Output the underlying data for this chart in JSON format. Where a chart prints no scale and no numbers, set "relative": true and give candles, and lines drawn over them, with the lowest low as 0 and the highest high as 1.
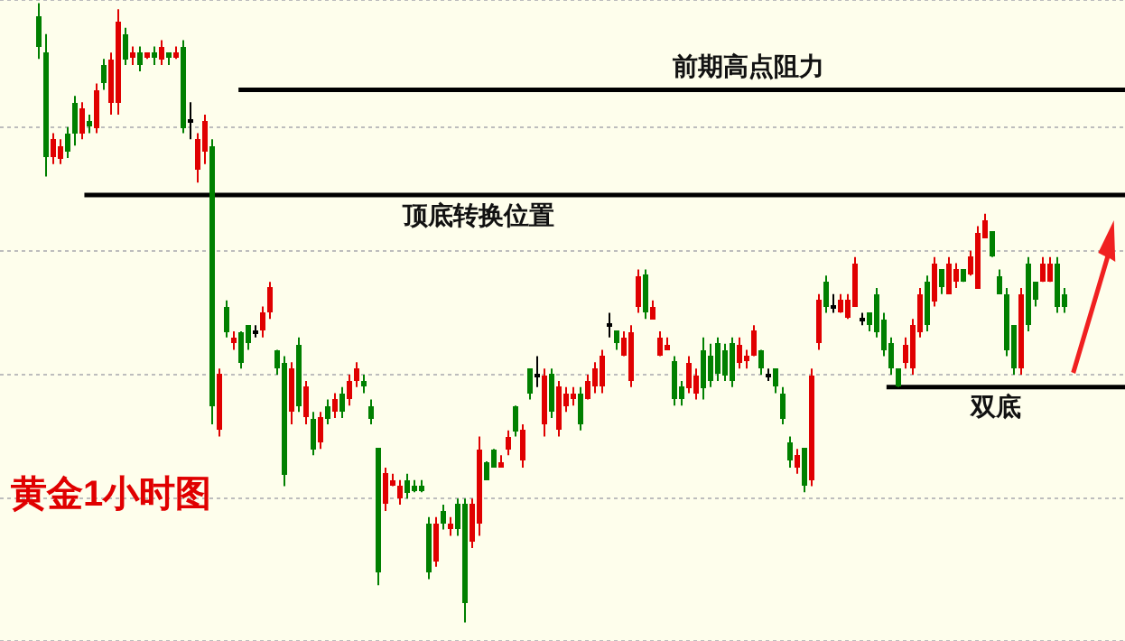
{
  "chart_data": {
    "type": "candlestick",
    "title": "黄金1小时图",
    "relative": true,
    "grid": "y",
    "tick_labels": false,
    "categories": [
      null,
      null,
      null,
      null,
      null,
      null,
      null,
      null,
      null,
      null,
      null,
      null,
      null,
      null,
      null,
      null,
      null,
      null,
      null,
      null,
      null,
      null,
      null,
      null,
      null,
      null,
      null,
      null,
      null,
      null,
      null,
      null,
      null,
      null,
      null,
      null,
      null,
      null,
      null,
      null,
      null,
      null,
      null,
      null,
      null,
      null,
      null,
      null,
      null,
      null,
      null,
      null,
      null,
      null,
      null,
      null,
      null,
      null,
      null,
      null,
      null,
      null,
      null,
      null,
      null,
      null,
      null,
      null,
      null,
      null,
      null,
      null,
      null,
      null,
      null,
      null,
      null,
      null,
      null,
      null,
      null,
      null,
      null,
      null,
      null,
      null,
      null,
      null,
      null,
      null,
      null,
      null,
      null,
      null,
      null,
      null,
      null,
      null,
      null,
      null,
      null,
      null,
      null,
      null,
      null,
      null,
      null,
      null,
      null,
      null,
      null,
      null,
      null,
      null,
      null,
      null,
      null,
      null,
      null,
      null,
      null,
      null,
      null,
      null,
      null,
      null,
      null,
      null,
      null,
      null,
      null,
      null,
      null,
      null,
      null,
      null,
      null,
      null,
      null,
      null,
      null,
      null,
      null
    ],
    "ohlc": [
      [
        0.98,
        1,
        0.91,
        0.93
      ],
      [
        0.92,
        0.95,
        0.72,
        0.75
      ],
      [
        0.75,
        0.79,
        0.74,
        0.78
      ],
      [
        0.75,
        0.78,
        0.74,
        0.77
      ],
      [
        0.79,
        0.8,
        0.75,
        0.76
      ],
      [
        0.84,
        0.85,
        0.77,
        0.79
      ],
      [
        0.79,
        0.84,
        0.78,
        0.83
      ],
      [
        0.81,
        0.82,
        0.79,
        0.8
      ],
      [
        0.8,
        0.87,
        0.79,
        0.86
      ],
      [
        0.9,
        0.91,
        0.86,
        0.87
      ],
      [
        0.84,
        0.92,
        0.82,
        0.91
      ],
      [
        0.84,
        0.99,
        0.82,
        0.97
      ],
      [
        0.95,
        0.96,
        0.9,
        0.91
      ],
      [
        0.91,
        0.93,
        0.9,
        0.92
      ],
      [
        0.92,
        0.93,
        0.89,
        0.9
      ],
      [
        0.91,
        0.92,
        0.91,
        0.92
      ],
      [
        0.92,
        0.93,
        0.9,
        0.91
      ],
      [
        0.91,
        0.94,
        0.9,
        0.93
      ],
      [
        0.92,
        0.92,
        0.9,
        0.91
      ],
      [
        0.91,
        0.93,
        0.91,
        0.92
      ],
      [
        0.93,
        0.94,
        0.79,
        0.8
      ],
      [
        0.81,
        0.84,
        0.78,
        0.81
      ],
      [
        0.73,
        0.79,
        0.71,
        0.78
      ],
      [
        0.76,
        0.82,
        0.74,
        0.81
      ],
      [
        0.77,
        0.78,
        0.32,
        0.35
      ],
      [
        0.31,
        0.41,
        0.3,
        0.4
      ],
      [
        0.51,
        0.52,
        0.46,
        0.47
      ],
      [
        0.45,
        0.47,
        0.44,
        0.46
      ],
      [
        0.47,
        0.47,
        0.41,
        0.42
      ],
      [
        0.48,
        0.48,
        0.44,
        0.45
      ],
      [
        0.47,
        0.48,
        0.46,
        0.47
      ],
      [
        0.47,
        0.51,
        0.46,
        0.5
      ],
      [
        0.5,
        0.55,
        0.49,
        0.54
      ],
      [
        0.44,
        0.44,
        0.4,
        0.41
      ],
      [
        0.42,
        0.43,
        0.22,
        0.24
      ],
      [
        0.34,
        0.42,
        0.32,
        0.41
      ],
      [
        0.45,
        0.46,
        0.34,
        0.35
      ],
      [
        0.33,
        0.39,
        0.32,
        0.38
      ],
      [
        0.33,
        0.34,
        0.27,
        0.28
      ],
      [
        0.29,
        0.34,
        0.28,
        0.33
      ],
      [
        0.35,
        0.36,
        0.32,
        0.33
      ],
      [
        0.34,
        0.37,
        0.33,
        0.36
      ],
      [
        0.37,
        0.38,
        0.33,
        0.34
      ],
      [
        0.36,
        0.4,
        0.35,
        0.39
      ],
      [
        0.39,
        0.42,
        0.38,
        0.41
      ],
      [
        0.39,
        0.4,
        0.37,
        0.38
      ],
      [
        0.35,
        0.36,
        0.32,
        0.33
      ],
      [
        0.28,
        0.28,
        0.06,
        0.08
      ],
      [
        0.19,
        0.25,
        0.18,
        0.24
      ],
      [
        0.22,
        0.24,
        0.22,
        0.23
      ],
      [
        0.2,
        0.23,
        0.19,
        0.22
      ],
      [
        0.23,
        0.24,
        0.2,
        0.21
      ],
      [
        0.22,
        0.23,
        0.21,
        0.21
      ],
      [
        0.22,
        0.23,
        0.21,
        0.21
      ],
      [
        0.16,
        0.17,
        0.07,
        0.08
      ],
      [
        0.1,
        0.17,
        0.09,
        0.16
      ],
      [
        0.18,
        0.19,
        0.15,
        0.16
      ],
      [
        0.15,
        0.17,
        0.14,
        0.16
      ],
      [
        0.19,
        0.2,
        0.14,
        0.15
      ],
      [
        0.19,
        0.2,
        0,
        0.03
      ],
      [
        0.13,
        0.2,
        0.12,
        0.19
      ],
      [
        0.16,
        0.3,
        0.14,
        0.28
      ],
      [
        0.26,
        0.26,
        0.23,
        0.23
      ],
      [
        0.28,
        0.28,
        0.25,
        0.25
      ],
      [
        0.25,
        0.27,
        0.25,
        0.26
      ],
      [
        0.28,
        0.31,
        0.27,
        0.3
      ],
      [
        0.35,
        0.35,
        0.3,
        0.31
      ],
      [
        0.26,
        0.32,
        0.25,
        0.31
      ],
      [
        0.41,
        0.41,
        0.36,
        0.37
      ],
      [
        0.4,
        0.43,
        0.38,
        0.4
      ],
      [
        0.32,
        0.41,
        0.3,
        0.4
      ],
      [
        0.4,
        0.41,
        0.33,
        0.34
      ],
      [
        0.31,
        0.39,
        0.3,
        0.38
      ],
      [
        0.35,
        0.38,
        0.34,
        0.37
      ],
      [
        0.36,
        0.38,
        0.35,
        0.37
      ],
      [
        0.37,
        0.38,
        0.31,
        0.32
      ],
      [
        0.36,
        0.4,
        0.36,
        0.39
      ],
      [
        0.38,
        0.42,
        0.37,
        0.41
      ],
      [
        0.38,
        0.44,
        0.37,
        0.43
      ],
      [
        0.48,
        0.5,
        0.46,
        0.48
      ],
      [
        0.47,
        0.47,
        0.44,
        0.45
      ],
      [
        0.43,
        0.47,
        0.43,
        0.46
      ],
      [
        0.39,
        0.48,
        0.38,
        0.47
      ],
      [
        0.51,
        0.57,
        0.5,
        0.56
      ],
      [
        0.56,
        0.57,
        0.49,
        0.5
      ],
      [
        0.49,
        0.52,
        0.49,
        0.51
      ],
      [
        0.43,
        0.47,
        0.43,
        0.46
      ],
      [
        0.44,
        0.46,
        0.44,
        0.45
      ],
      [
        0.42,
        0.43,
        0.35,
        0.36
      ],
      [
        0.38,
        0.39,
        0.35,
        0.36
      ],
      [
        0.38,
        0.43,
        0.37,
        0.42
      ],
      [
        0.37,
        0.41,
        0.36,
        0.4
      ],
      [
        0.44,
        0.46,
        0.36,
        0.38
      ],
      [
        0.43,
        0.45,
        0.38,
        0.39
      ],
      [
        0.45,
        0.46,
        0.39,
        0.4
      ],
      [
        0.44,
        0.45,
        0.39,
        0.4
      ],
      [
        0.45,
        0.46,
        0.38,
        0.39
      ],
      [
        0.42,
        0.46,
        0.41,
        0.45
      ],
      [
        0.42,
        0.44,
        0.41,
        0.43
      ],
      [
        0.43,
        0.48,
        0.43,
        0.47
      ],
      [
        0.44,
        0.44,
        0.4,
        0.41
      ],
      [
        0.4,
        0.41,
        0.39,
        0.4
      ],
      [
        0.41,
        0.41,
        0.37,
        0.38
      ],
      [
        0.37,
        0.38,
        0.32,
        0.33
      ],
      [
        0.29,
        0.3,
        0.25,
        0.26
      ],
      [
        0.25,
        0.28,
        0.24,
        0.27
      ],
      [
        0.28,
        0.28,
        0.21,
        0.22
      ],
      [
        0.23,
        0.41,
        0.22,
        0.4
      ],
      [
        0.45,
        0.53,
        0.44,
        0.52
      ],
      [
        0.55,
        0.56,
        0.5,
        0.51
      ],
      [
        0.51,
        0.53,
        0.5,
        0.51
      ],
      [
        0.5,
        0.53,
        0.5,
        0.52
      ],
      [
        0.49,
        0.53,
        0.49,
        0.52
      ],
      [
        0.51,
        0.59,
        0.51,
        0.58
      ],
      [
        0.49,
        0.5,
        0.48,
        0.49
      ],
      [
        0.5,
        0.5,
        0.47,
        0.48
      ],
      [
        0.53,
        0.54,
        0.46,
        0.47
      ],
      [
        0.49,
        0.5,
        0.43,
        0.44
      ],
      [
        0.45,
        0.46,
        0.4,
        0.41
      ],
      [
        0.41,
        0.41,
        0.38,
        0.38
      ],
      [
        0.42,
        0.46,
        0.41,
        0.45
      ],
      [
        0.41,
        0.49,
        0.4,
        0.48
      ],
      [
        0.47,
        0.54,
        0.46,
        0.53
      ],
      [
        0.55,
        0.56,
        0.47,
        0.48
      ],
      [
        0.52,
        0.59,
        0.51,
        0.58
      ],
      [
        0.57,
        0.57,
        0.53,
        0.54
      ],
      [
        0.53,
        0.59,
        0.53,
        0.58
      ],
      [
        0.55,
        0.58,
        0.54,
        0.57
      ],
      [
        0.57,
        0.57,
        0.55,
        0.55
      ],
      [
        0.56,
        0.6,
        0.56,
        0.59
      ],
      [
        0.54,
        0.64,
        0.54,
        0.63
      ],
      [
        0.62,
        0.66,
        0.62,
        0.65
      ],
      [
        0.63,
        0.63,
        0.59,
        0.59
      ],
      [
        0.56,
        0.57,
        0.53,
        0.53
      ],
      [
        0.53,
        0.54,
        0.43,
        0.44
      ],
      [
        0.48,
        0.48,
        0.4,
        0.41
      ],
      [
        0.41,
        0.54,
        0.4,
        0.53
      ],
      [
        0.58,
        0.59,
        0.47,
        0.48
      ],
      [
        0.55,
        0.55,
        0.51,
        0.52
      ],
      [
        0.55,
        0.59,
        0.55,
        0.58
      ],
      [
        0.55,
        0.59,
        0.55,
        0.58
      ],
      [
        0.58,
        0.59,
        0.5,
        0.51
      ],
      [
        0.53,
        0.54,
        0.5,
        0.51
      ]
    ],
    "colors": [
      "#008000",
      "#008000",
      "#e00000",
      "#e00000",
      "#008000",
      "#008000",
      "#e00000",
      "#008000",
      "#e00000",
      "#008000",
      "#e00000",
      "#e00000",
      "#008000",
      "#e00000",
      "#008000",
      "#e00000",
      "#008000",
      "#e00000",
      "#008000",
      "#e00000",
      "#008000",
      "#000000",
      "#e00000",
      "#e00000",
      "#008000",
      "#e00000",
      "#008000",
      "#e00000",
      "#008000",
      "#008000",
      "#000000",
      "#e00000",
      "#e00000",
      "#008000",
      "#008000",
      "#e00000",
      "#008000",
      "#e00000",
      "#008000",
      "#e00000",
      "#008000",
      "#e00000",
      "#008000",
      "#e00000",
      "#e00000",
      "#008000",
      "#008000",
      "#008000",
      "#e00000",
      "#e00000",
      "#e00000",
      "#008000",
      "#008000",
      "#008000",
      "#008000",
      "#e00000",
      "#008000",
      "#e00000",
      "#008000",
      "#008000",
      "#e00000",
      "#e00000",
      "#008000",
      "#008000",
      "#e00000",
      "#e00000",
      "#008000",
      "#e00000",
      "#008000",
      "#000000",
      "#e00000",
      "#008000",
      "#e00000",
      "#e00000",
      "#e00000",
      "#008000",
      "#e00000",
      "#e00000",
      "#e00000",
      "#000000",
      "#008000",
      "#e00000",
      "#e00000",
      "#e00000",
      "#008000",
      "#e00000",
      "#e00000",
      "#e00000",
      "#008000",
      "#008000",
      "#e00000",
      "#e00000",
      "#008000",
      "#008000",
      "#008000",
      "#008000",
      "#008000",
      "#e00000",
      "#e00000",
      "#e00000",
      "#008000",
      "#000000",
      "#008000",
      "#008000",
      "#008000",
      "#e00000",
      "#008000",
      "#e00000",
      "#e00000",
      "#008000",
      "#000000",
      "#e00000",
      "#e00000",
      "#e00000",
      "#000000",
      "#008000",
      "#008000",
      "#008000",
      "#008000",
      "#008000",
      "#e00000",
      "#e00000",
      "#e00000",
      "#008000",
      "#e00000",
      "#008000",
      "#e00000",
      "#e00000",
      "#008000",
      "#e00000",
      "#e00000",
      "#e00000",
      "#008000",
      "#008000",
      "#008000",
      "#008000",
      "#e00000",
      "#008000",
      "#008000",
      "#e00000",
      "#e00000",
      "#008000",
      "#008000"
    ],
    "ref_lines": [
      {
        "axis": "y",
        "value": 0.86,
        "label": "前期高点阻力",
        "color": "#000000"
      },
      {
        "axis": "y",
        "value": 0.69,
        "label": "顶底转换位置",
        "color": "#000000"
      },
      {
        "axis": "y",
        "value": 0.38,
        "label": "双底",
        "color": "#000000"
      }
    ]
  }
}
